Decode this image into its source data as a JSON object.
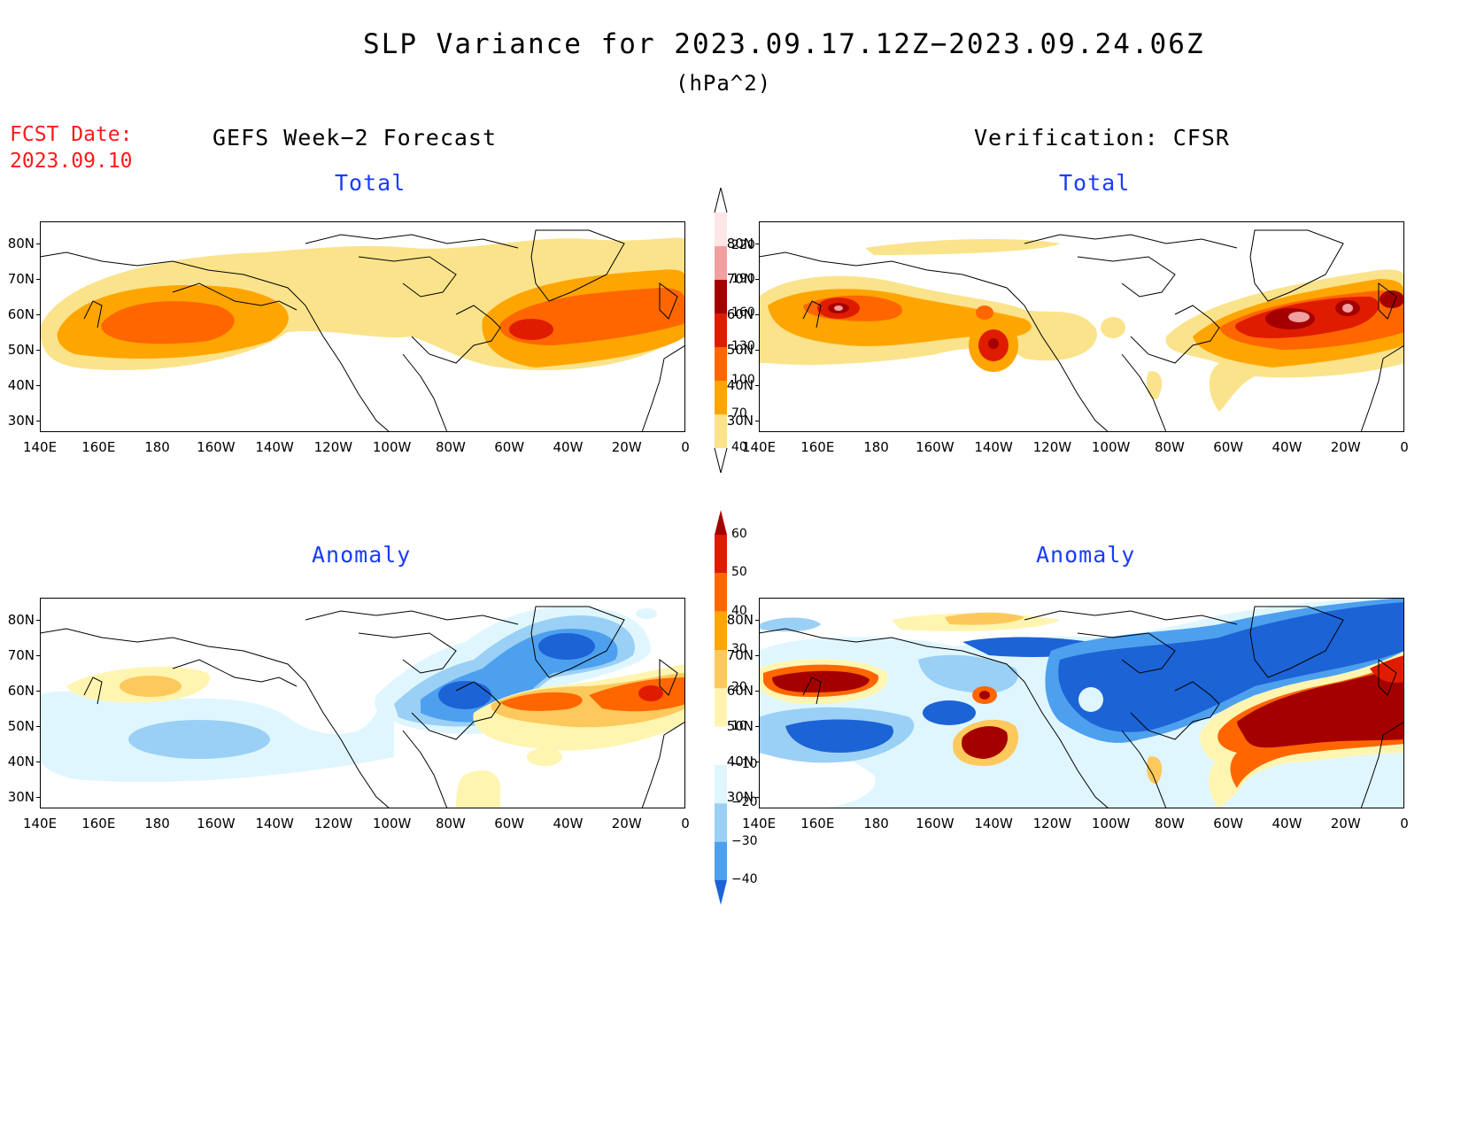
{
  "title": "SLP Variance for 2023.09.17.12Z−2023.09.24.06Z",
  "units": "(hPa^2)",
  "fcst_date_label": "FCST Date:",
  "fcst_date_value": "2023.09.10",
  "left_heading": "GEFS Week−2 Forecast",
  "right_heading": "Verification: CFSR",
  "panel_titles": {
    "total": "Total",
    "anomaly": "Anomaly"
  },
  "lat_labels": [
    "80N",
    "70N",
    "60N",
    "50N",
    "40N",
    "30N"
  ],
  "lon_labels": [
    "140E",
    "160E",
    "180",
    "160W",
    "140W",
    "120W",
    "100W",
    "80W",
    "60W",
    "40W",
    "20W",
    "0"
  ],
  "total_colorbar": {
    "labels": [
      "220",
      "190",
      "160",
      "130",
      "100",
      "70",
      "40"
    ],
    "colors": [
      "#ffe6e6",
      "#f0a0a0",
      "#a50000",
      "#e01c00",
      "#ff6600",
      "#ffa500",
      "#fbe38b"
    ]
  },
  "anomaly_colorbar": {
    "labels": [
      "60",
      "50",
      "40",
      "30",
      "20",
      "10",
      "−10",
      "−20",
      "−30",
      "−40"
    ],
    "colors": [
      "#a50000",
      "#e01c00",
      "#ff6600",
      "#ffa500",
      "#fdc95c",
      "#fff5b0",
      "#ffffff",
      "#dff6ff",
      "#9ad0f5",
      "#4da0ee",
      "#1c63d6"
    ]
  },
  "palette": {
    "title_blue": "#1a3cff",
    "fcst_red": "#ff1a1a"
  }
}
